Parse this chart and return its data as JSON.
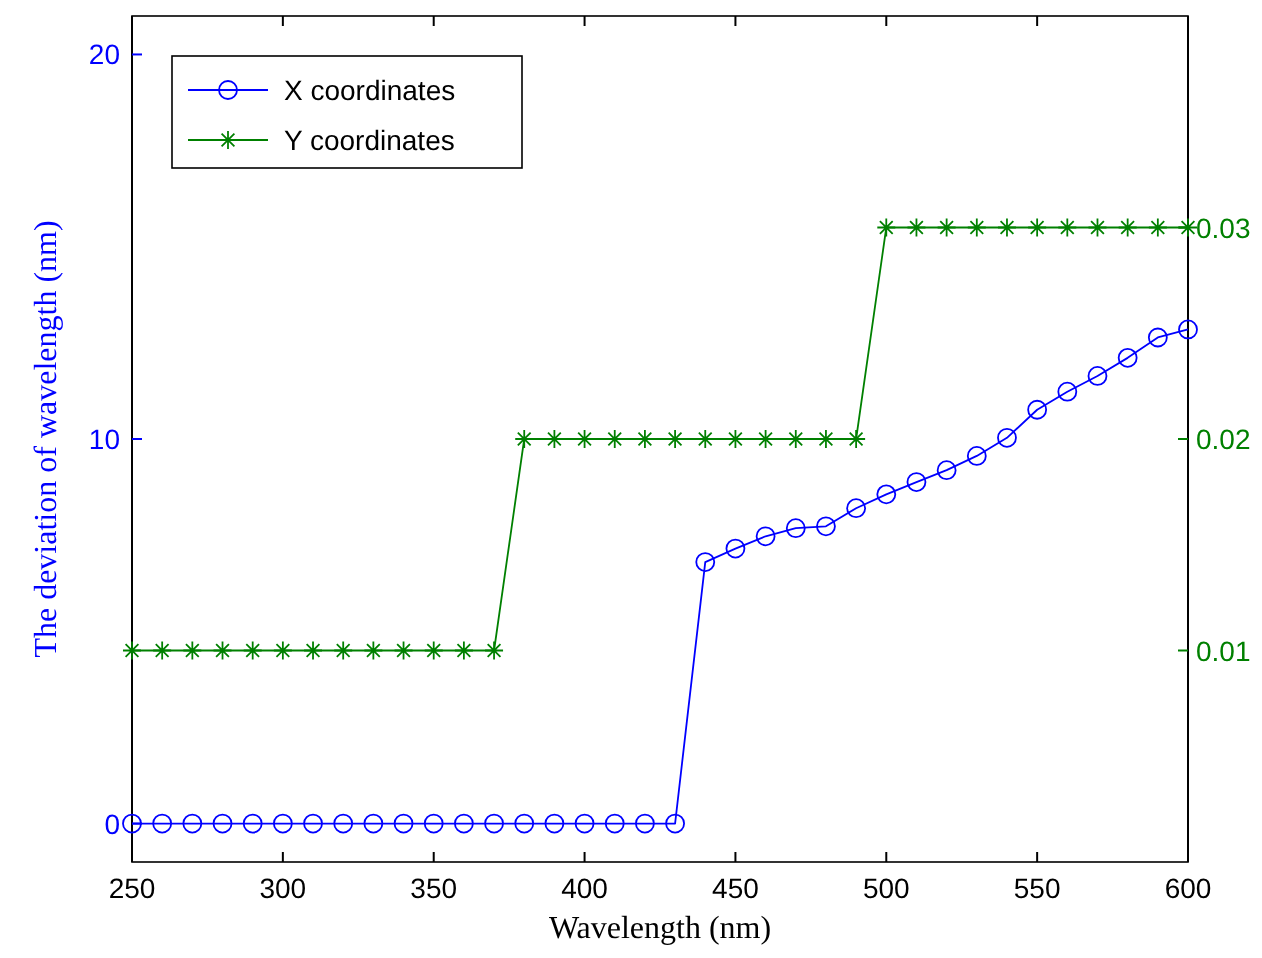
{
  "chart_data": {
    "type": "line",
    "xlabel": "Wavelength (nm)",
    "ylabel": "The deviation of wavelength (nm)",
    "x": [
      250,
      260,
      270,
      280,
      290,
      300,
      310,
      320,
      330,
      340,
      350,
      360,
      370,
      380,
      390,
      400,
      410,
      420,
      430,
      440,
      450,
      460,
      470,
      480,
      490,
      500,
      510,
      520,
      530,
      540,
      550,
      560,
      570,
      580,
      590,
      600
    ],
    "series": [
      {
        "name": "X coordinates",
        "color": "#0000ff",
        "marker": "circle",
        "values": [
          0,
          0,
          0,
          0,
          0,
          0,
          0,
          0,
          0,
          0,
          0,
          0,
          0,
          0,
          0,
          0,
          0,
          0,
          0,
          6.8,
          7.15,
          7.47,
          7.68,
          7.73,
          8.2,
          8.56,
          8.88,
          9.19,
          9.56,
          10.03,
          10.76,
          11.23,
          11.64,
          12.11,
          12.64,
          12.85
        ]
      },
      {
        "name": "Y coordinates",
        "color": "#008000",
        "marker": "cross",
        "axis": "y2",
        "values": [
          0.01,
          0.01,
          0.01,
          0.01,
          0.01,
          0.01,
          0.01,
          0.01,
          0.01,
          0.01,
          0.01,
          0.01,
          0.01,
          0.02,
          0.02,
          0.02,
          0.02,
          0.02,
          0.02,
          0.02,
          0.02,
          0.02,
          0.02,
          0.02,
          0.02,
          0.03,
          0.03,
          0.03,
          0.03,
          0.03,
          0.03,
          0.03,
          0.03,
          0.03,
          0.03,
          0.03
        ]
      }
    ],
    "xlim": [
      250,
      600
    ],
    "xticks": [
      250,
      300,
      350,
      400,
      450,
      500,
      550,
      600
    ],
    "ylim": [
      -1,
      21
    ],
    "yticks": [
      0,
      10,
      20
    ],
    "y2lim": [
      0,
      0.04
    ],
    "y2ticks": [
      0.01,
      0.02,
      0.03
    ],
    "legend": "top left",
    "grid": false
  }
}
